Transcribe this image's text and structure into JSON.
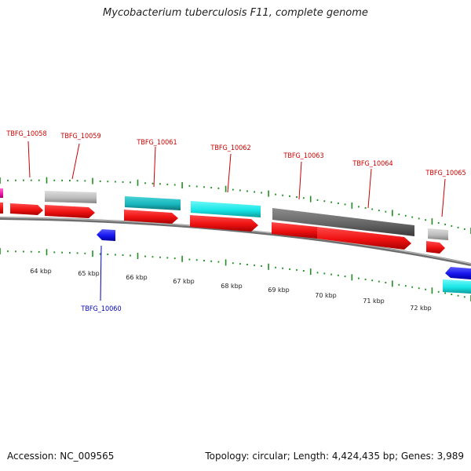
{
  "title": "Mycobacterium tuberculosis F11, complete genome",
  "accession_text": "Accession: NC_009565",
  "summary_text": "Topology: circular; Length: 4,424,435 bp; Genes: 3,989",
  "colors": {
    "red": "#ee1111",
    "cyan": "#19e6e6",
    "teal": "#18b8be",
    "gray_light": "#bdbdbd",
    "gray_dark": "#666666",
    "blue": "#1515ee",
    "magenta": "#ee1aa8",
    "tick_green": "#1f8f1f",
    "label_red": "#cc0000",
    "label_blue": "#0000bb",
    "backbone": "#8a8a8a"
  },
  "kbp_labels": [
    "64 kbp",
    "65 kbp",
    "66 kbp",
    "67 kbp",
    "68 kbp",
    "69 kbp",
    "70 kbp",
    "71 kbp",
    "72 kbp"
  ],
  "gene_labels": [
    {
      "id": "lbl-10058",
      "text": "TBFG_10058",
      "color": "red"
    },
    {
      "id": "lbl-10059",
      "text": "TBFG_10059",
      "color": "red"
    },
    {
      "id": "lbl-10061",
      "text": "TBFG_10061",
      "color": "red"
    },
    {
      "id": "lbl-10062",
      "text": "TBFG_10062",
      "color": "red"
    },
    {
      "id": "lbl-10063",
      "text": "TBFG_10063",
      "color": "red"
    },
    {
      "id": "lbl-10064",
      "text": "TBFG_10064",
      "color": "red"
    },
    {
      "id": "lbl-10065",
      "text": "TBFG_10065",
      "color": "red"
    },
    {
      "id": "lbl-10060",
      "text": "TBFG_10060",
      "color": "blue"
    }
  ]
}
